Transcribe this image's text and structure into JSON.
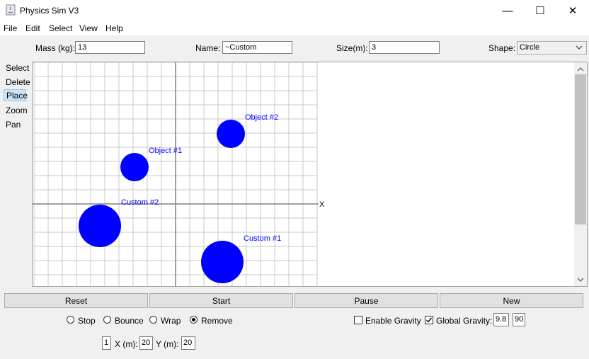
{
  "window": {
    "title": "Physics Sim V3",
    "minimize": "—",
    "maximize": "☐",
    "close": "✕"
  },
  "menu": [
    "File",
    "Edit",
    "Select",
    "View",
    "Help"
  ],
  "form": {
    "mass_label": "Mass (kg):",
    "mass_value": "13",
    "name_label": "Name:",
    "name_value": "~Custom",
    "size_label": "Size(m):",
    "size_value": "3",
    "shape_label": "Shape:",
    "shape_value": "Circle"
  },
  "tools": [
    {
      "label": "Select",
      "active": false
    },
    {
      "label": "Delete",
      "active": false
    },
    {
      "label": "Place",
      "active": true
    },
    {
      "label": "Zoom",
      "active": false
    },
    {
      "label": "Pan",
      "active": false
    }
  ],
  "canvas": {
    "axis_x_label": "X",
    "object_color": "#0000ff",
    "grid_color": "#c8c8c8",
    "axis_color": "#808080",
    "objects": [
      {
        "name": "Object #1"
      },
      {
        "name": "Object #2"
      },
      {
        "name": "Custom #2"
      },
      {
        "name": "Custom #1"
      }
    ]
  },
  "buttons": {
    "reset": "Reset",
    "start": "Start",
    "pause": "Pause",
    "new": "New"
  },
  "edge_modes": [
    {
      "label": "Stop",
      "checked": false
    },
    {
      "label": "Bounce",
      "checked": false
    },
    {
      "label": "Wrap",
      "checked": false
    },
    {
      "label": "Remove",
      "checked": true
    }
  ],
  "gravity": {
    "enable_label": "Enable Gravity",
    "enable_checked": false,
    "global_label": "Global Gravity:",
    "global_checked": true,
    "value": "9.8",
    "angle": "90"
  },
  "bounds": {
    "count": "1",
    "x_label": "X (m):",
    "x_value": "20",
    "y_label": "Y (m):",
    "y_value": "20"
  }
}
